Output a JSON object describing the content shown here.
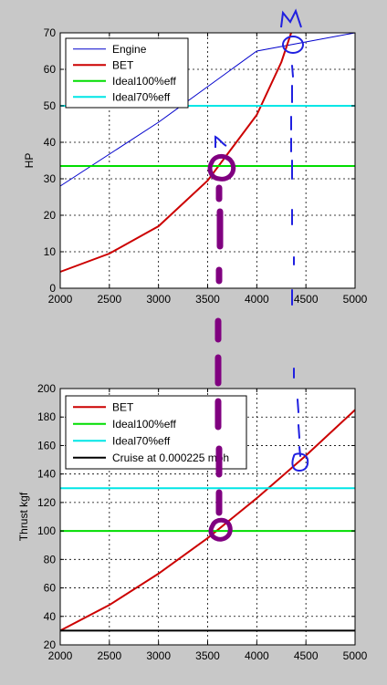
{
  "chart_data": [
    {
      "type": "line",
      "title": "",
      "xlabel": "",
      "ylabel": "HP",
      "xlim": [
        2000,
        5000
      ],
      "ylim": [
        0,
        70
      ],
      "xticks": [
        2000,
        2500,
        3000,
        3500,
        4000,
        4500,
        5000
      ],
      "yticks": [
        0,
        10,
        20,
        30,
        40,
        50,
        60,
        70
      ],
      "grid": true,
      "legend_position": "top-left",
      "series": [
        {
          "name": "Engine",
          "color": "#0000cc",
          "stroke_width": 1,
          "x": [
            2000,
            3000,
            4000,
            5000
          ],
          "y": [
            28,
            45.5,
            65,
            70
          ]
        },
        {
          "name": "BET",
          "color": "#cc0000",
          "stroke_width": 2,
          "x": [
            2000,
            2500,
            3000,
            3500,
            4000,
            4250,
            4350
          ],
          "y": [
            4.5,
            9.5,
            17,
            29.5,
            47.5,
            62,
            70
          ]
        },
        {
          "name": "Ideal100%eff",
          "color": "#00dd00",
          "stroke_width": 2,
          "x": [
            2000,
            5000
          ],
          "y": [
            33.5,
            33.5
          ]
        },
        {
          "name": "Ideal70%eff",
          "color": "#00e6e6",
          "stroke_width": 2,
          "x": [
            2000,
            5000
          ],
          "y": [
            50,
            50
          ]
        }
      ]
    },
    {
      "type": "line",
      "title": "",
      "xlabel": "",
      "ylabel": "Thrust kgf",
      "xlim": [
        2000,
        5000
      ],
      "ylim": [
        20,
        200
      ],
      "xticks": [
        2000,
        2500,
        3000,
        3500,
        4000,
        4500,
        5000
      ],
      "yticks": [
        20,
        40,
        60,
        80,
        100,
        120,
        140,
        160,
        180,
        200
      ],
      "grid": true,
      "legend_position": "top-left",
      "series": [
        {
          "name": "BET",
          "color": "#cc0000",
          "stroke_width": 2,
          "x": [
            2000,
            2500,
            3000,
            3500,
            4000,
            4500,
            5000
          ],
          "y": [
            30,
            48,
            70,
            95,
            123,
            153,
            185
          ]
        },
        {
          "name": "Ideal100%eff",
          "color": "#00dd00",
          "stroke_width": 2,
          "x": [
            2000,
            5000
          ],
          "y": [
            100,
            100
          ]
        },
        {
          "name": "Ideal70%eff",
          "color": "#00e6e6",
          "stroke_width": 2,
          "x": [
            2000,
            5000
          ],
          "y": [
            130,
            130
          ]
        },
        {
          "name": "Cruise at 0.000225 mph",
          "color": "#000000",
          "stroke_width": 2,
          "x": [
            2000,
            5000
          ],
          "y": [
            30,
            30
          ]
        }
      ]
    }
  ],
  "annotations": {
    "purple_color": "#800080",
    "blue_color": "#2020e0"
  }
}
